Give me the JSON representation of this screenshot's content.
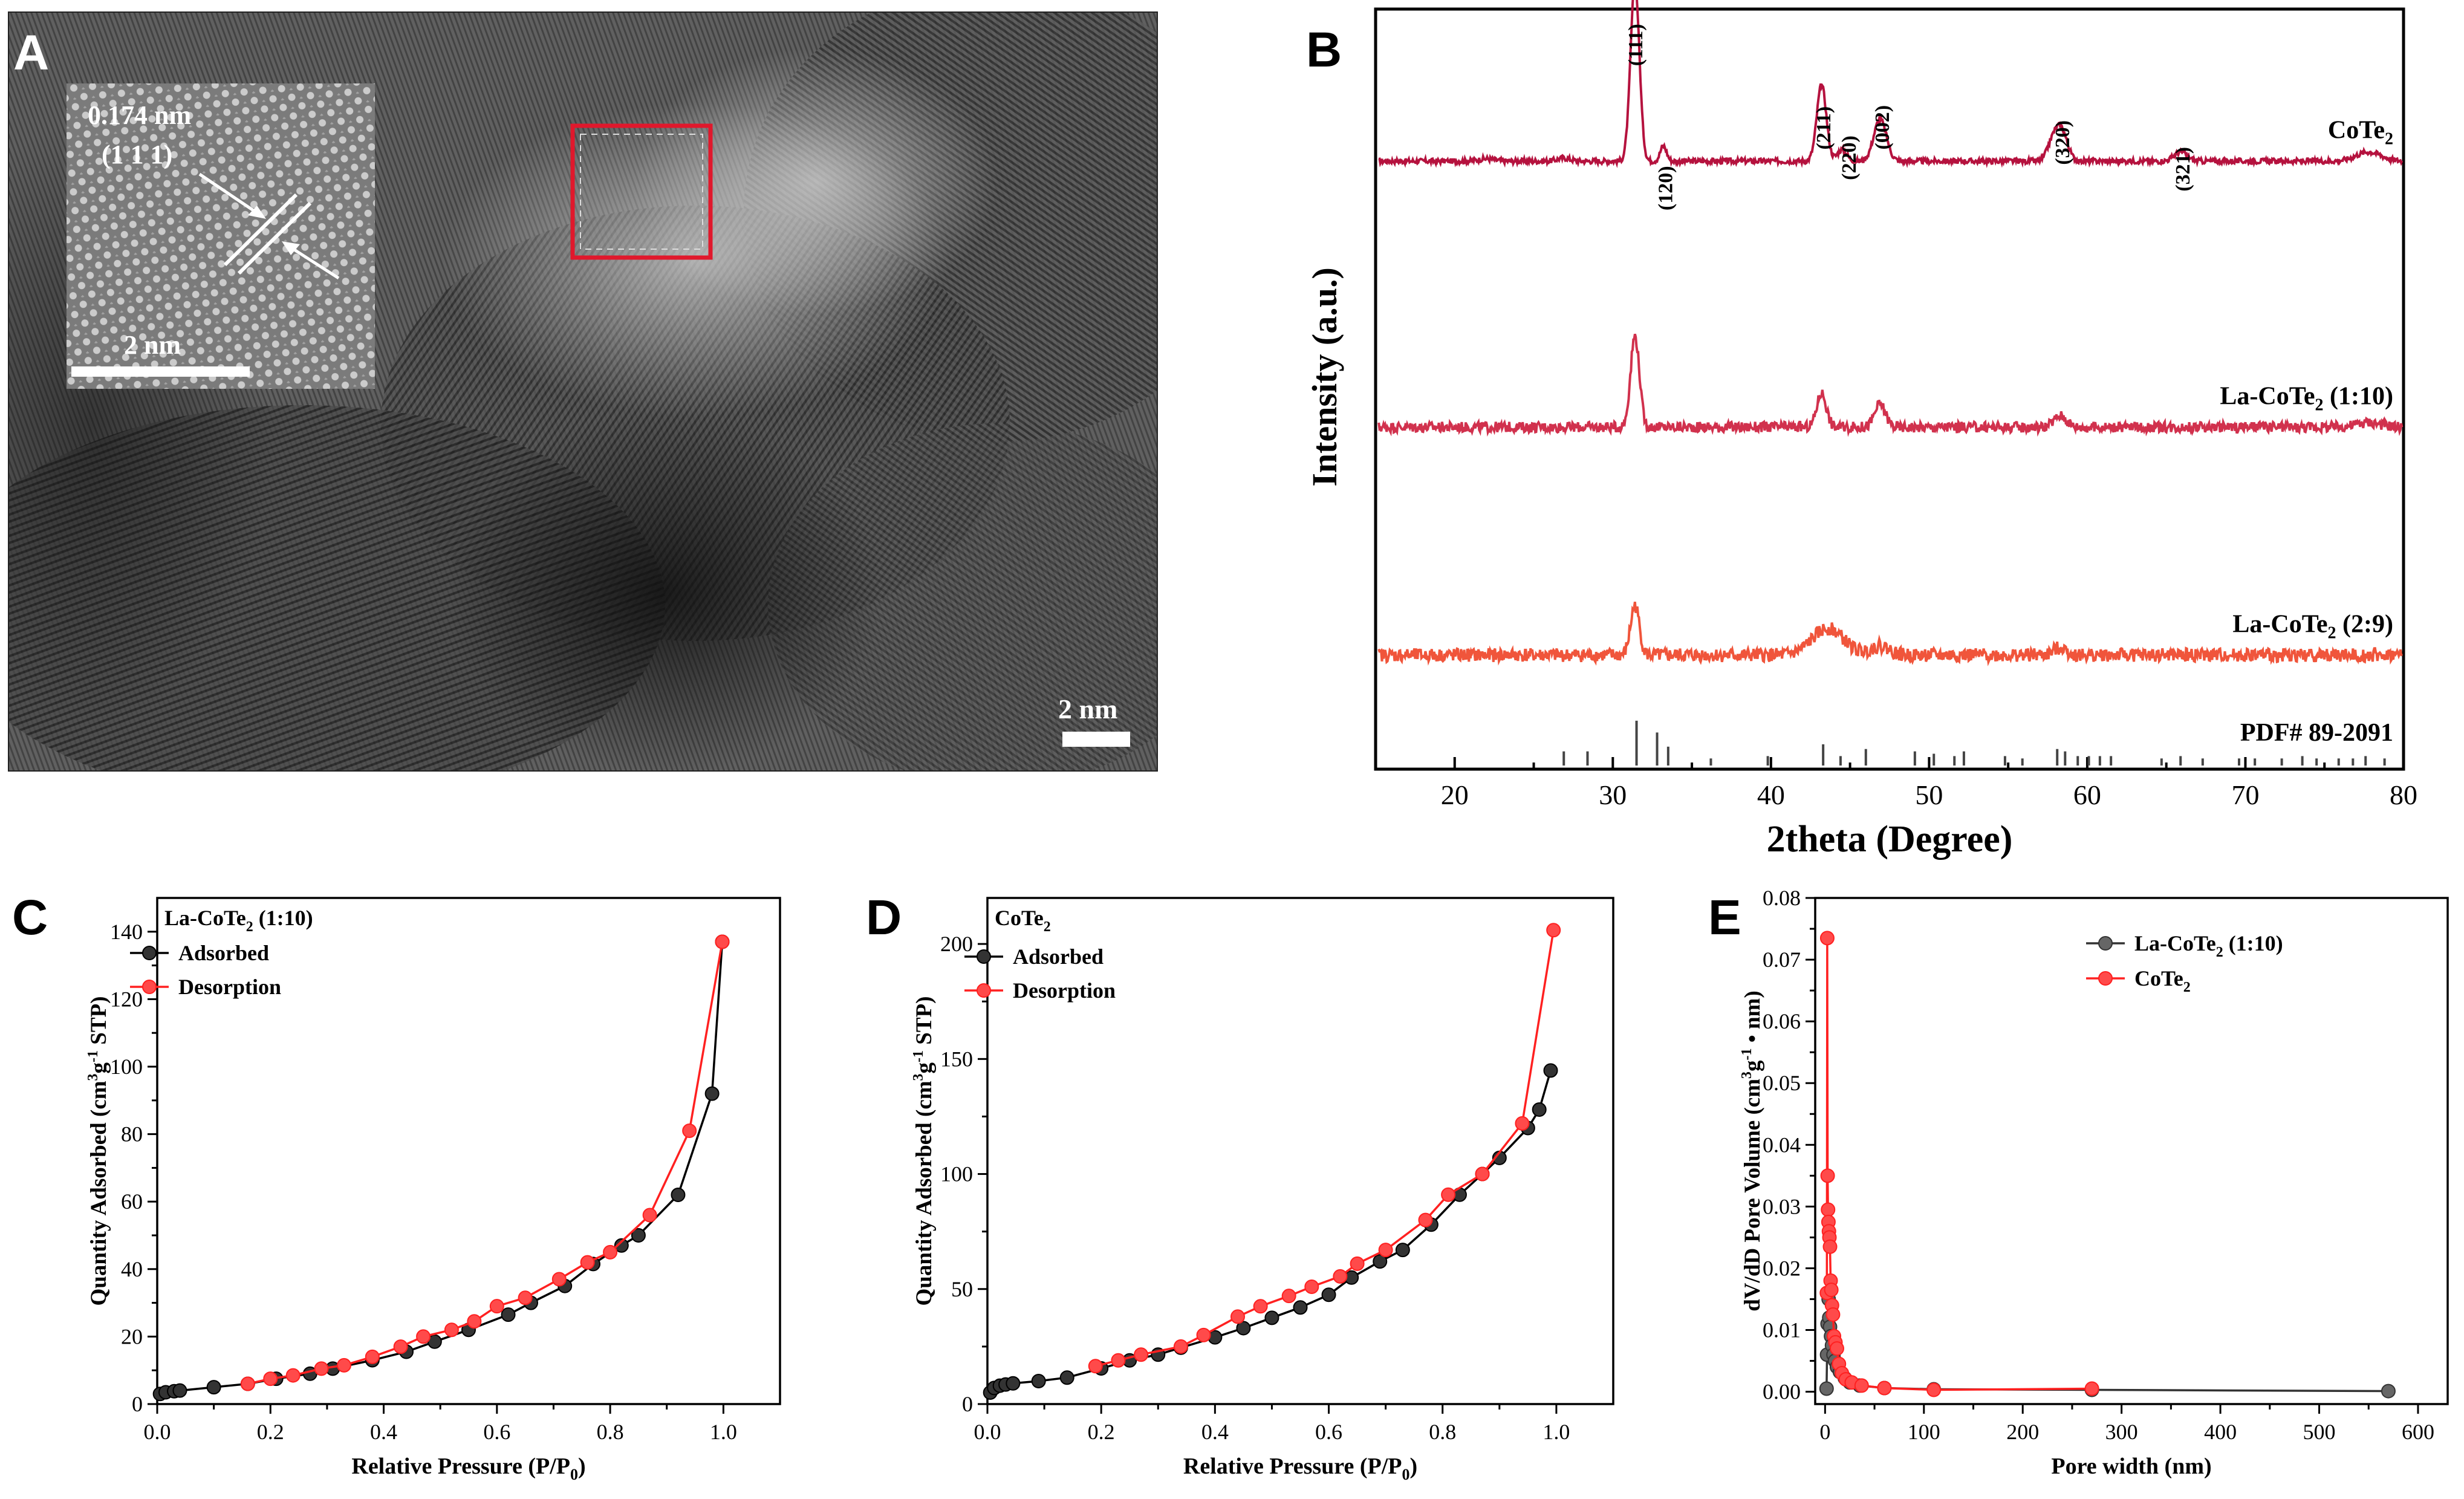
{
  "panel_labels": {
    "a": "A",
    "b": "B",
    "c": "C",
    "d": "D",
    "e": "E"
  },
  "panel_a": {
    "inset_spacing": "0.174 nm",
    "inset_plane": "(1 1 1)",
    "inset_scale": "2 nm",
    "main_scale": "2 nm"
  },
  "chart_data": [
    {
      "id": "xrd",
      "type": "line",
      "title": "",
      "xlabel": "2theta (Degree)",
      "ylabel": "Intensity (a.u.)",
      "xlim": [
        15,
        80
      ],
      "xticks": [
        "20",
        "30",
        "40",
        "50",
        "60",
        "70",
        "80"
      ],
      "xtick_values": [
        20,
        30,
        40,
        50,
        60,
        70,
        80
      ],
      "series": [
        {
          "name": "CoTe2",
          "label": "CoTe",
          "sub": "2",
          "suffix": "",
          "color": "#b5123e",
          "offset": 0.8,
          "peaks": [
            [
              31.4,
              0.235,
              0.28
            ],
            [
              33.2,
              0.02,
              0.2
            ],
            [
              43.2,
              0.1,
              0.3
            ],
            [
              44.5,
              0.015,
              0.3
            ],
            [
              46.9,
              0.055,
              0.4
            ],
            [
              58.3,
              0.045,
              0.4
            ],
            [
              57.7,
              0.015,
              0.3
            ],
            [
              65.9,
              0.012,
              0.4
            ],
            [
              77.8,
              0.012,
              0.8
            ],
            [
              26.9,
              0.004,
              0.4
            ],
            [
              22.0,
              0.003,
              0.5
            ]
          ]
        },
        {
          "name": "La-CoTe2 (1:10)",
          "label": "La-CoTe",
          "sub": "2",
          "suffix": " (1:10)",
          "color": "#d1314d",
          "offset": 0.45,
          "peaks": [
            [
              31.4,
              0.12,
              0.28
            ],
            [
              43.2,
              0.045,
              0.3
            ],
            [
              46.9,
              0.03,
              0.35
            ],
            [
              58.3,
              0.015,
              0.4
            ],
            [
              77.8,
              0.006,
              0.8
            ]
          ]
        },
        {
          "name": "La-CoTe2 (2:9)",
          "label": "La-CoTe",
          "sub": "2",
          "suffix": " (2:9)",
          "color": "#f0553b",
          "offset": 0.15,
          "peaks": [
            [
              31.4,
              0.065,
              0.28
            ],
            [
              43.6,
              0.035,
              1.0
            ],
            [
              46.9,
              0.012,
              0.6
            ],
            [
              58.3,
              0.01,
              0.4
            ]
          ]
        }
      ],
      "peak_labels": [
        {
          "text": "(111)",
          "x": 31.4
        },
        {
          "text": "(120)",
          "x": 33.3
        },
        {
          "text": "(211)",
          "x": 43.3
        },
        {
          "text": "(220)",
          "x": 44.9
        },
        {
          "text": "(002)",
          "x": 47.0
        },
        {
          "text": "(320)",
          "x": 58.4
        },
        {
          "text": "(321)",
          "x": 66.0
        }
      ],
      "reference": {
        "label": "PDF# 89-2091",
        "lines": [
          [
            26.9,
            0.3
          ],
          [
            28.4,
            0.3
          ],
          [
            31.5,
            0.95
          ],
          [
            32.8,
            0.7
          ],
          [
            33.5,
            0.4
          ],
          [
            36.2,
            0.15
          ],
          [
            39.8,
            0.2
          ],
          [
            43.3,
            0.45
          ],
          [
            44.4,
            0.2
          ],
          [
            46.0,
            0.35
          ],
          [
            49.1,
            0.3
          ],
          [
            50.3,
            0.25
          ],
          [
            51.6,
            0.2
          ],
          [
            52.2,
            0.3
          ],
          [
            54.8,
            0.2
          ],
          [
            55.9,
            0.15
          ],
          [
            58.1,
            0.35
          ],
          [
            58.6,
            0.3
          ],
          [
            59.4,
            0.2
          ],
          [
            60.1,
            0.2
          ],
          [
            60.8,
            0.2
          ],
          [
            61.5,
            0.2
          ],
          [
            64.7,
            0.15
          ],
          [
            65.9,
            0.2
          ],
          [
            67.3,
            0.15
          ],
          [
            69.6,
            0.15
          ],
          [
            70.6,
            0.15
          ],
          [
            72.3,
            0.15
          ],
          [
            73.6,
            0.2
          ],
          [
            74.5,
            0.15
          ],
          [
            75.9,
            0.15
          ],
          [
            76.8,
            0.15
          ],
          [
            77.6,
            0.2
          ],
          [
            78.8,
            0.15
          ]
        ]
      }
    },
    {
      "id": "bet-la",
      "type": "line",
      "title": "La-CoTe2 (1:10)",
      "title_label": "La-CoTe",
      "title_sub": "2",
      "title_suffix": " (1:10)",
      "xlabel": "Relative Pressure (P/P0)",
      "ylabel": "Quantity Adsorbed (cm3g-1 STP)",
      "xlim": [
        0,
        1.1
      ],
      "ylim": [
        0,
        150
      ],
      "xticks": [
        0.0,
        0.2,
        0.4,
        0.6,
        0.8,
        1.0
      ],
      "xtick_labels": [
        "0.0",
        "0.2",
        "0.4",
        "0.6",
        "0.8",
        "1.0"
      ],
      "yticks": [
        0,
        20,
        40,
        60,
        80,
        100,
        120,
        140
      ],
      "yminor": [
        10,
        30,
        50,
        70,
        90,
        110,
        130
      ],
      "series": [
        {
          "name": "Adsorbed",
          "color": "#000000",
          "x": [
            0.005,
            0.015,
            0.03,
            0.04,
            0.1,
            0.16,
            0.21,
            0.27,
            0.31,
            0.38,
            0.44,
            0.49,
            0.55,
            0.62,
            0.66,
            0.72,
            0.77,
            0.82,
            0.85,
            0.92,
            0.98,
            0.998
          ],
          "y": [
            3.0,
            3.5,
            3.8,
            4.0,
            5.0,
            6.0,
            7.5,
            9.0,
            10.5,
            13.0,
            15.5,
            18.5,
            22.0,
            26.5,
            30.0,
            35.0,
            41.5,
            47.0,
            50.0,
            62.0,
            92.0,
            137.0
          ]
        },
        {
          "name": "Desorption",
          "color": "#ff2020",
          "x": [
            0.998,
            0.94,
            0.87,
            0.8,
            0.76,
            0.71,
            0.65,
            0.6,
            0.56,
            0.52,
            0.47,
            0.43,
            0.38,
            0.33,
            0.29,
            0.24,
            0.2,
            0.16
          ],
          "y": [
            137.0,
            81.0,
            56.0,
            45.0,
            42.0,
            37.0,
            31.5,
            29.0,
            24.5,
            22.0,
            20.0,
            17.0,
            14.0,
            11.5,
            10.5,
            8.5,
            7.5,
            6.0
          ]
        }
      ]
    },
    {
      "id": "bet-cote2",
      "type": "line",
      "title": "CoTe2",
      "title_label": "CoTe",
      "title_sub": "2",
      "title_suffix": "",
      "xlabel": "Relative Pressure (P/P0)",
      "ylabel": "Quantity Adsorbed (cm3g-1 STP)",
      "xlim": [
        0,
        1.1
      ],
      "ylim": [
        0,
        220
      ],
      "xticks": [
        0.0,
        0.2,
        0.4,
        0.6,
        0.8,
        1.0
      ],
      "xtick_labels": [
        "0.0",
        "0.2",
        "0.4",
        "0.6",
        "0.8",
        "1.0"
      ],
      "yticks": [
        0,
        50,
        100,
        150,
        200
      ],
      "yminor": [
        25,
        75,
        125,
        175
      ],
      "series": [
        {
          "name": "Adsorbed",
          "color": "#000000",
          "x": [
            0.005,
            0.012,
            0.022,
            0.032,
            0.045,
            0.09,
            0.14,
            0.2,
            0.25,
            0.3,
            0.34,
            0.4,
            0.45,
            0.5,
            0.55,
            0.6,
            0.64,
            0.69,
            0.73,
            0.78,
            0.83,
            0.87,
            0.9,
            0.95,
            0.97,
            0.99
          ],
          "y": [
            5.0,
            7.0,
            8.0,
            8.5,
            9.0,
            10.0,
            11.5,
            15.5,
            19.0,
            21.5,
            24.5,
            29.0,
            33.0,
            37.5,
            42.0,
            47.5,
            55.0,
            62.0,
            67.0,
            78.0,
            91.0,
            100.0,
            107.0,
            120.0,
            128.0,
            145.0
          ]
        },
        {
          "name": "Desorption",
          "color": "#ff2020",
          "x": [
            0.995,
            0.94,
            0.87,
            0.81,
            0.77,
            0.7,
            0.65,
            0.62,
            0.57,
            0.53,
            0.48,
            0.44,
            0.38,
            0.34,
            0.27,
            0.23,
            0.19
          ],
          "y": [
            206.0,
            122.0,
            100.0,
            91.0,
            80.0,
            67.0,
            61.0,
            55.5,
            51.0,
            47.0,
            42.5,
            38.0,
            30.0,
            25.0,
            21.5,
            19.0,
            16.5
          ]
        }
      ]
    },
    {
      "id": "psd",
      "type": "line",
      "title": "",
      "xlabel": "Pore width (nm)",
      "ylabel": "dV/dD Pore Volume (cm3g-1 • nm)",
      "xlim": [
        -10,
        630
      ],
      "ylim": [
        -0.002,
        0.08
      ],
      "xticks": [
        0,
        100,
        200,
        300,
        400,
        500,
        600
      ],
      "xtick_labels": [
        "0",
        "100",
        "200",
        "300",
        "400",
        "500",
        "600"
      ],
      "yticks": [
        0.0,
        0.01,
        0.02,
        0.03,
        0.04,
        0.05,
        0.06,
        0.07,
        0.08
      ],
      "ytick_labels": [
        "0.00",
        "0.01",
        "0.02",
        "0.03",
        "0.04",
        "0.05",
        "0.06",
        "0.07",
        "0.08"
      ],
      "yminor": [
        0.005,
        0.015,
        0.025,
        0.035,
        0.045,
        0.055,
        0.065,
        0.075
      ],
      "series": [
        {
          "name": "La-CoTe2 (1:10)",
          "label": "La-CoTe",
          "sub": "2",
          "suffix": " (1:10)",
          "color": "#333333",
          "x": [
            1.5,
            2.0,
            2.5,
            3.0,
            3.6,
            4.2,
            5.0,
            6.0,
            7.0,
            8.5,
            10.0,
            12.0,
            15.0,
            20.0,
            25.0,
            35.0,
            60.0,
            110.0,
            270.0,
            570.0
          ],
          "y": [
            0.0005,
            0.006,
            0.011,
            0.016,
            0.015,
            0.012,
            0.0105,
            0.009,
            0.0075,
            0.006,
            0.005,
            0.004,
            0.0032,
            0.0022,
            0.0015,
            0.001,
            0.0006,
            0.0004,
            0.0003,
            0.0001
          ]
        },
        {
          "name": "CoTe2",
          "label": "CoTe",
          "sub": "2",
          "suffix": "",
          "color": "#ff2020",
          "x": [
            1.8,
            2.2,
            2.6,
            3.0,
            3.4,
            3.9,
            4.4,
            5.0,
            5.6,
            6.3,
            7.0,
            8.0,
            9.0,
            10.5,
            12.0,
            14.0,
            17.0,
            21.0,
            27.0,
            37.0,
            60.0,
            110.0,
            270.0
          ],
          "y": [
            0.016,
            0.0735,
            0.035,
            0.0295,
            0.0275,
            0.026,
            0.025,
            0.0235,
            0.018,
            0.0165,
            0.014,
            0.0125,
            0.009,
            0.008,
            0.007,
            0.0045,
            0.003,
            0.002,
            0.0015,
            0.001,
            0.0006,
            0.0003,
            0.0005
          ]
        }
      ]
    }
  ]
}
